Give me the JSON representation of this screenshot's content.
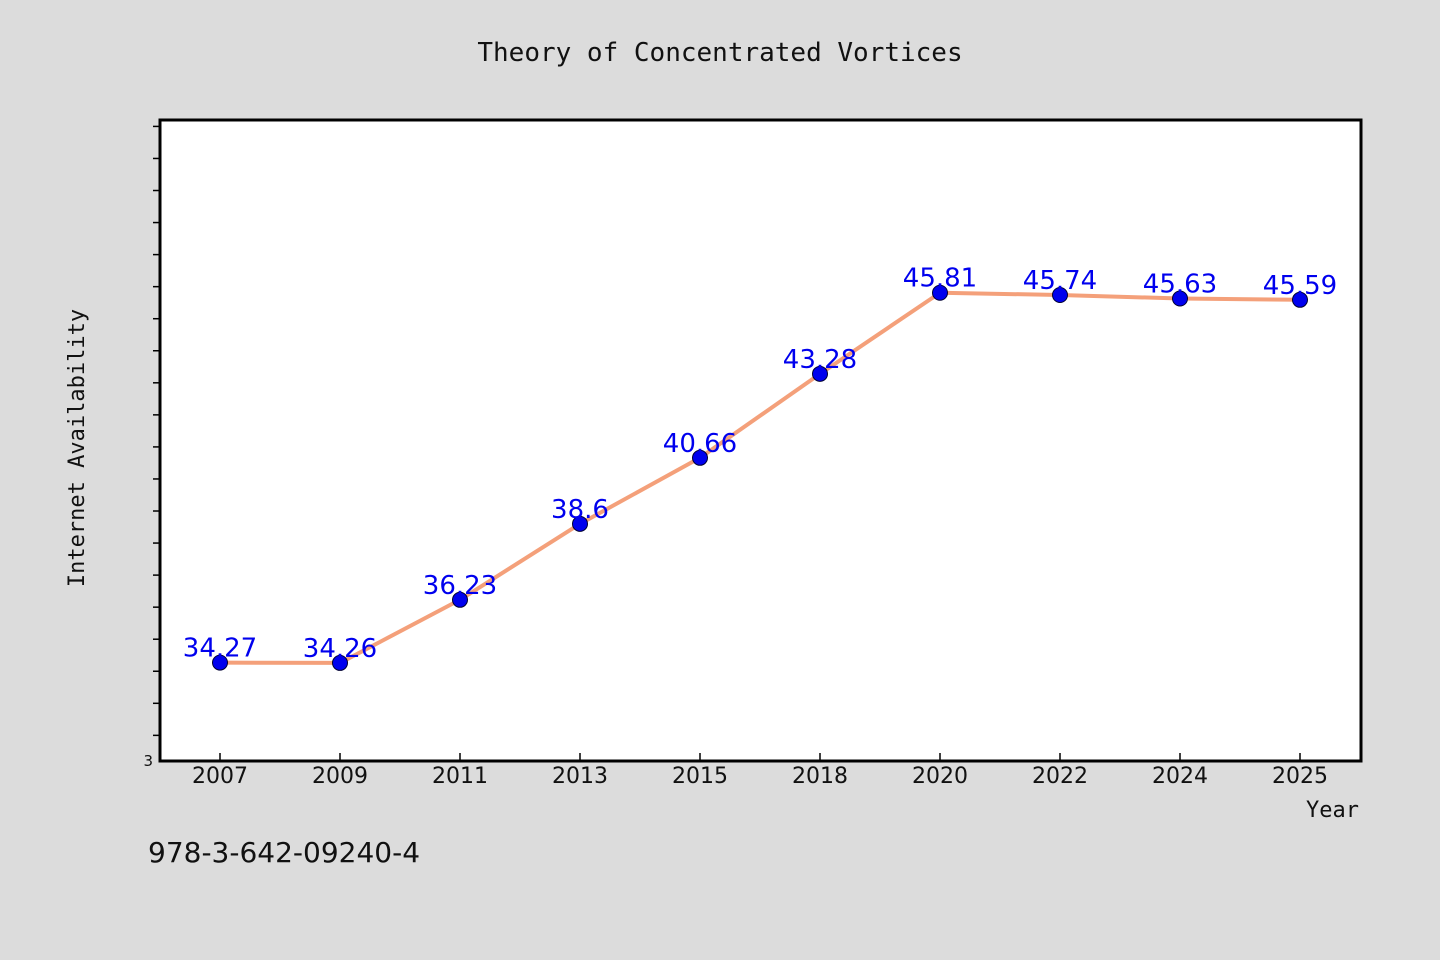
{
  "chart_data": {
    "type": "line",
    "title": "Theory of Concentrated Vortices",
    "xlabel": "Year",
    "ylabel": "Internet Availability",
    "categories": [
      "2007",
      "2009",
      "2011",
      "2013",
      "2015",
      "2018",
      "2020",
      "2022",
      "2024",
      "2025"
    ],
    "series": [
      {
        "values": [
          34.27,
          34.26,
          36.23,
          38.6,
          40.66,
          43.28,
          45.81,
          45.74,
          45.63,
          45.59
        ],
        "labels": [
          "34.27",
          "34.26",
          "36.23",
          "38.6",
          "40.66",
          "43.28",
          "45.81",
          "45.74",
          "45.63",
          "45.59"
        ]
      }
    ],
    "y_tick_label": "3",
    "ylim": [
      31.2,
      51.2
    ],
    "y_minor_tick_step": 1,
    "grid": false,
    "line_color": "#f4a07a",
    "marker_color": "#0000ee",
    "label_color": "#0000ee"
  },
  "footer": {
    "isbn": "978-3-642-09240-4"
  },
  "colors": {
    "background": "#dcdcdc",
    "plot_background": "#ffffff",
    "frame": "#000000"
  }
}
